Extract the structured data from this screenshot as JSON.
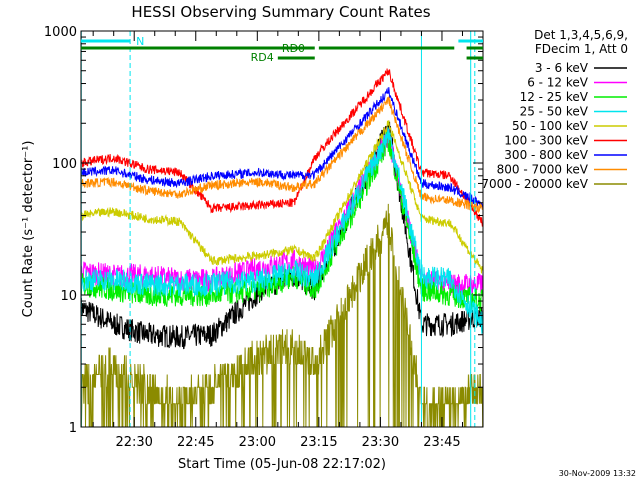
{
  "chart_data": {
    "type": "line",
    "title": "HESSI Observing Summary Count Rates",
    "xlabel": "Start Time (05-Jun-08 22:17:02)",
    "ylabel": "Count Rate (s⁻¹ detector⁻¹)",
    "yscale": "log",
    "ylim": [
      1,
      1000
    ],
    "xlim": [
      "22:17:02",
      "23:55:00"
    ],
    "x_ticks": [
      "22:30",
      "22:45",
      "23:00",
      "23:15",
      "23:30",
      "23:45"
    ],
    "y_ticks": [
      "1",
      "10",
      "100",
      "1000"
    ],
    "grid": false,
    "legend_position": "right",
    "legend_header": [
      "Det 1,3,4,5,6,9,",
      "FDecim 1, Att 0"
    ],
    "footer_timestamp": "30-Nov-2009 13:32",
    "annotations": {
      "night": {
        "label": "N",
        "intervals": [
          [
            "22:17",
            "22:29"
          ],
          [
            "23:49",
            "23:55"
          ]
        ],
        "color": "#00e5ee"
      },
      "rd0": {
        "label": "RD0",
        "intervals": [
          [
            "22:17",
            "23:14"
          ],
          [
            "23:15",
            "23:48"
          ],
          [
            "23:51",
            "23:55"
          ]
        ],
        "color": "#008000"
      },
      "rd4": {
        "label": "RD4",
        "intervals": [
          [
            "23:05",
            "23:14"
          ],
          [
            "23:51",
            "23:55"
          ]
        ],
        "color": "#008000"
      },
      "vlines_solid": [
        "23:40",
        "23:52"
      ],
      "vlines_dashed": [
        "22:29",
        "23:53"
      ]
    },
    "series": [
      {
        "name": "3 - 6 keV",
        "color": "#000000",
        "profile": "lowband",
        "values": [
          8,
          6,
          5,
          4.8,
          5,
          11,
          14,
          11,
          190,
          6,
          6,
          7
        ]
      },
      {
        "name": "6 - 12 keV",
        "color": "#ff00ff",
        "profile": "lowband",
        "values": [
          15,
          14,
          14,
          13,
          13,
          16,
          18,
          15,
          160,
          13,
          12,
          12
        ]
      },
      {
        "name": "12 - 25 keV",
        "color": "#00ee00",
        "profile": "lowband",
        "values": [
          12,
          11,
          10,
          10,
          10,
          11,
          14,
          11,
          150,
          11,
          10,
          9
        ]
      },
      {
        "name": "25 - 50 keV",
        "color": "#00e5ee",
        "profile": "lowband",
        "values": [
          13,
          13,
          12,
          12,
          12,
          13,
          15,
          13,
          170,
          14,
          13,
          6
        ]
      },
      {
        "name": "50 - 100 keV",
        "color": "#cccc00",
        "profile": "highband",
        "values": [
          40,
          43,
          38,
          36,
          18,
          20,
          22,
          19,
          200,
          38,
          35,
          15
        ]
      },
      {
        "name": "100 - 300 keV",
        "color": "#ff0000",
        "profile": "highband",
        "values": [
          100,
          110,
          90,
          85,
          45,
          48,
          50,
          110,
          500,
          85,
          80,
          35
        ]
      },
      {
        "name": "300 - 800 keV",
        "color": "#0000ff",
        "profile": "highband",
        "values": [
          85,
          88,
          75,
          70,
          80,
          85,
          80,
          82,
          350,
          70,
          65,
          48
        ]
      },
      {
        "name": "800 - 7000 keV",
        "color": "#ff8c00",
        "profile": "highband",
        "values": [
          70,
          72,
          62,
          58,
          68,
          72,
          65,
          70,
          300,
          55,
          52,
          45
        ]
      },
      {
        "name": "7000 - 20000 keV",
        "color": "#8b8b00",
        "profile": "bottom",
        "values": [
          2,
          3,
          2,
          1.5,
          2,
          3.5,
          4,
          3,
          36,
          1.5,
          1.5,
          2
        ]
      }
    ],
    "x_samples": [
      "22:17",
      "22:25",
      "22:33",
      "22:41",
      "22:49",
      "23:01",
      "23:09",
      "23:14",
      "23:32",
      "23:40",
      "23:47",
      "23:55"
    ]
  }
}
